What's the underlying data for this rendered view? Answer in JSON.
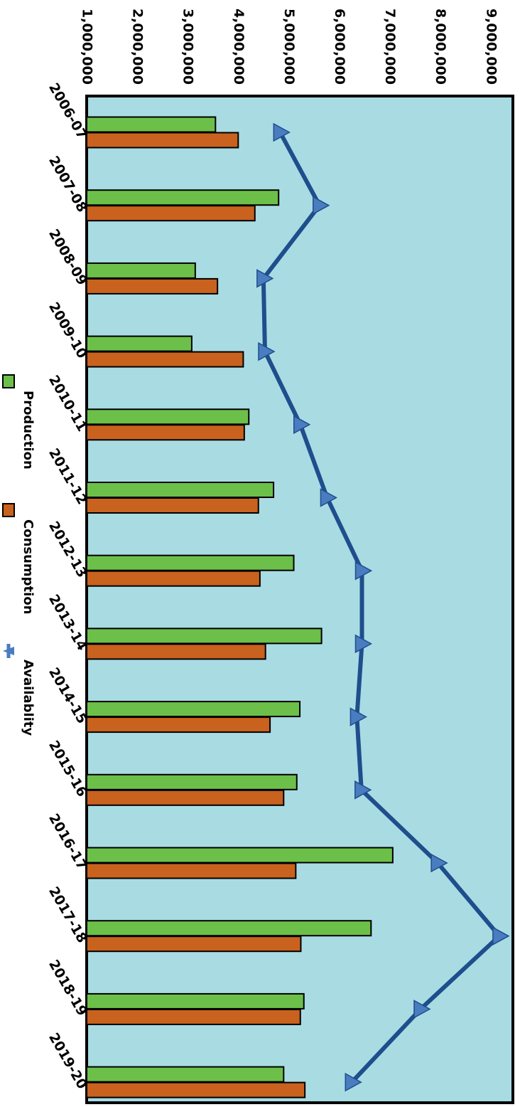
{
  "chart_data": {
    "type": "bar",
    "orientation": "horizontal",
    "categories": [
      "2006-07",
      "2007-08",
      "2008-09",
      "2009-10",
      "2010-11",
      "2011-12",
      "2012-13",
      "2013-14",
      "2014-15",
      "2015-16",
      "2016-17",
      "2017-18",
      "2018-19",
      "2019-20"
    ],
    "series": [
      {
        "name": "Production",
        "type": "bar",
        "color": "#6cc04a",
        "values": [
          3550000,
          4800000,
          3150000,
          3080000,
          4210000,
          4700000,
          5100000,
          5650000,
          5220000,
          5160000,
          7060000,
          6630000,
          5300000,
          4900000
        ]
      },
      {
        "name": "Consumption",
        "type": "bar",
        "color": "#c8621e",
        "values": [
          4000000,
          4330000,
          3590000,
          4100000,
          4120000,
          4400000,
          4430000,
          4540000,
          4630000,
          4900000,
          5140000,
          5240000,
          5230000,
          5320000
        ]
      },
      {
        "name": "Availablity",
        "type": "line",
        "color": "#1f4e8c",
        "marker_color": "#4a7cc0",
        "values": [
          4830000,
          5610000,
          4500000,
          4530000,
          5230000,
          5760000,
          6450000,
          6450000,
          6350000,
          6440000,
          7950000,
          9170000,
          7610000,
          6250000
        ]
      }
    ],
    "value_axis": {
      "ticks": [
        1000000,
        2000000,
        3000000,
        4000000,
        5000000,
        6000000,
        7000000,
        8000000,
        9000000
      ],
      "tick_labels": [
        "1,000,000",
        "2,000,000",
        "3,000,000",
        "4,000,000",
        "5,000,000",
        "6,000,000",
        "7,000,000",
        "8,000,000",
        "9,000,000"
      ],
      "range": [
        1000000,
        9400000
      ]
    },
    "title": "",
    "xlabel": "",
    "ylabel": "",
    "grid": false,
    "legend_position": "bottom",
    "plot_background": "#a9dbe3"
  }
}
